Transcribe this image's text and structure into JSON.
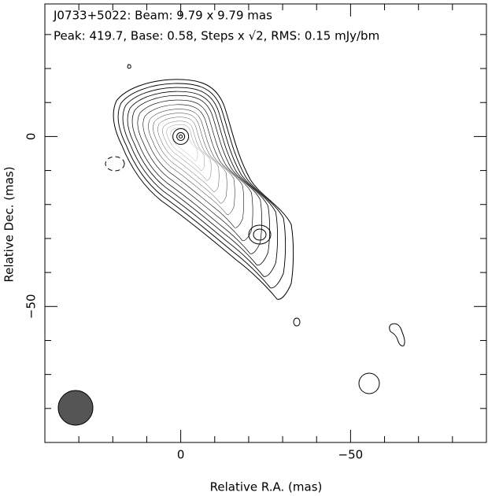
{
  "chart_data": {
    "type": "contour",
    "title": "J0733+5022: Beam: 9.79 x 9.79 mas",
    "subtitle": "Peak: 419.7, Base: 0.58, Steps x √2, RMS: 0.15 mJy/bm",
    "x_label": "Relative R.A. (mas)",
    "y_label": "Relative Dec. (mas)",
    "xlim": [
      40,
      -90
    ],
    "ylim": [
      -90,
      39
    ],
    "xticks": [
      0,
      {
        "value": -50,
        "label": "−50"
      }
    ],
    "yticks": [
      0,
      {
        "value": -50,
        "label": "−50"
      }
    ],
    "xminor_ticks": [
      30,
      20,
      10,
      -10,
      -20,
      -30,
      -40,
      -60,
      -70,
      -80
    ],
    "yminor_ticks": [
      30,
      20,
      10,
      -10,
      -20,
      -30,
      -40,
      -60,
      -70,
      -80
    ]
  }
}
